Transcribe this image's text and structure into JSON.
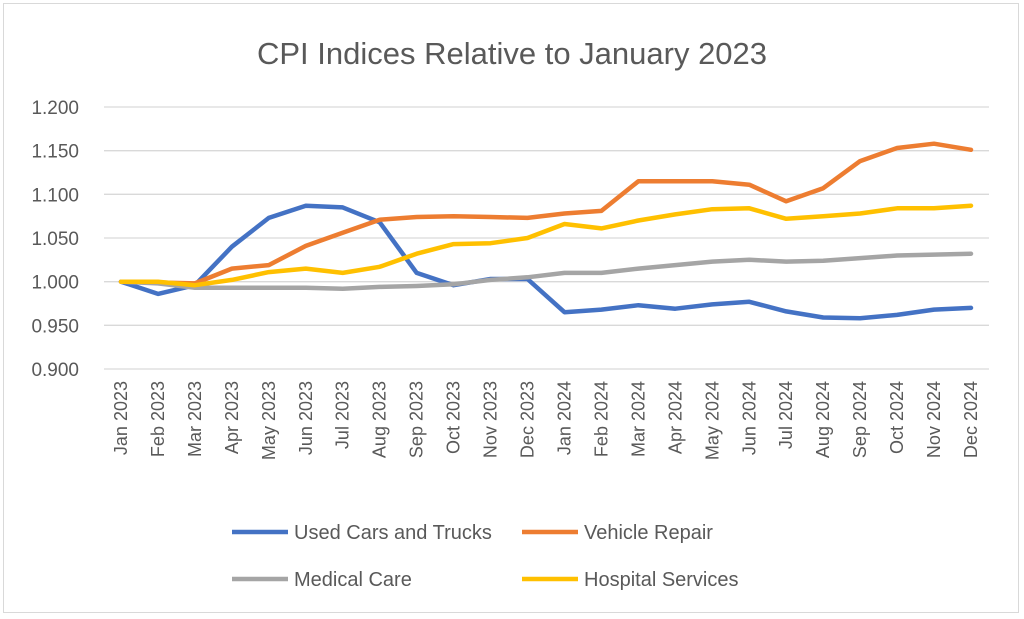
{
  "chart_data": {
    "type": "line",
    "title": "CPI Indices Relative to January 2023",
    "categories": [
      "Jan 2023",
      "Feb 2023",
      "Mar 2023",
      "Apr 2023",
      "May 2023",
      "Jun 2023",
      "Jul 2023",
      "Aug 2023",
      "Sep 2023",
      "Oct 2023",
      "Nov 2023",
      "Dec 2023",
      "Jan 2024",
      "Feb 2024",
      "Mar 2024",
      "Apr 2024",
      "May 2024",
      "Jun 2024",
      "Jul 2024",
      "Aug 2024",
      "Sep 2024",
      "Oct 2024",
      "Nov 2024",
      "Dec 2024"
    ],
    "yticks": [
      "1.200",
      "1.150",
      "1.100",
      "1.050",
      "1.000",
      "0.950",
      "0.900"
    ],
    "ylim": [
      0.9,
      1.2
    ],
    "grid": true,
    "legend_position": "bottom",
    "series": [
      {
        "name": "Used Cars and Trucks",
        "color": "#4472c4",
        "values": [
          1.0,
          0.986,
          0.996,
          1.04,
          1.073,
          1.087,
          1.085,
          1.068,
          1.01,
          0.996,
          1.003,
          1.003,
          0.965,
          0.968,
          0.973,
          0.969,
          0.974,
          0.977,
          0.966,
          0.959,
          0.958,
          0.962,
          0.968,
          0.97
        ]
      },
      {
        "name": "Vehicle Repair",
        "color": "#ed7d31",
        "values": [
          1.0,
          0.999,
          0.998,
          1.015,
          1.019,
          1.041,
          1.056,
          1.071,
          1.074,
          1.075,
          1.074,
          1.073,
          1.078,
          1.081,
          1.115,
          1.115,
          1.115,
          1.111,
          1.092,
          1.107,
          1.138,
          1.153,
          1.158,
          1.151
        ]
      },
      {
        "name": "Medical Care",
        "color": "#a5a5a5",
        "values": [
          1.0,
          0.998,
          0.993,
          0.993,
          0.993,
          0.993,
          0.992,
          0.994,
          0.995,
          0.997,
          1.002,
          1.005,
          1.01,
          1.01,
          1.015,
          1.019,
          1.023,
          1.025,
          1.023,
          1.024,
          1.027,
          1.03,
          1.031,
          1.032
        ]
      },
      {
        "name": "Hospital Services",
        "color": "#ffc000",
        "values": [
          1.0,
          1.0,
          0.996,
          1.002,
          1.011,
          1.015,
          1.01,
          1.017,
          1.032,
          1.043,
          1.044,
          1.05,
          1.066,
          1.061,
          1.07,
          1.077,
          1.083,
          1.084,
          1.072,
          1.075,
          1.078,
          1.084,
          1.084,
          1.087
        ]
      }
    ]
  }
}
